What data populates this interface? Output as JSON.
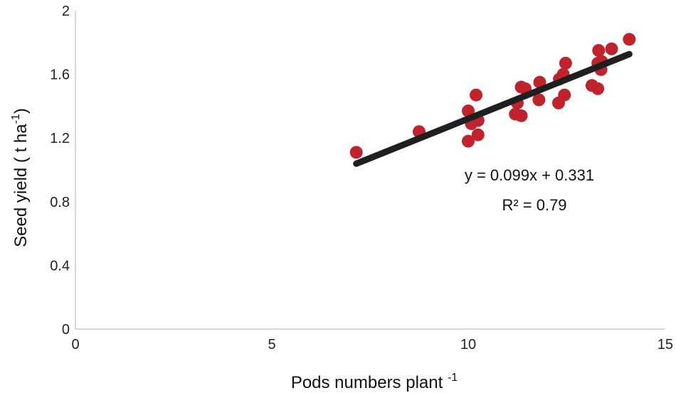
{
  "chart_data": {
    "type": "scatter",
    "title": "",
    "xlabel": {
      "main": "Pods numbers plant ",
      "sup": "-1"
    },
    "ylabel": {
      "main": "Seed yield ( t ha",
      "sup": "-1",
      "tail": ")"
    },
    "xlim": [
      0,
      15
    ],
    "ylim": [
      0,
      2
    ],
    "xticks": [
      0,
      5,
      10,
      15
    ],
    "yticks": [
      0,
      0.4,
      0.8,
      1.2,
      1.6,
      2
    ],
    "ytick_labels": [
      "0",
      "0.4",
      "0.8",
      "1.2",
      "1.6",
      "2"
    ],
    "grid": false,
    "legend": "none",
    "point_color": "#c0232b",
    "line_color": "#1f1f1f",
    "points": [
      {
        "x": 7.15,
        "y": 1.11
      },
      {
        "x": 8.75,
        "y": 1.24
      },
      {
        "x": 10.0,
        "y": 1.37
      },
      {
        "x": 10.0,
        "y": 1.18
      },
      {
        "x": 10.08,
        "y": 1.29
      },
      {
        "x": 10.2,
        "y": 1.47
      },
      {
        "x": 10.25,
        "y": 1.22
      },
      {
        "x": 10.25,
        "y": 1.31
      },
      {
        "x": 11.2,
        "y": 1.35
      },
      {
        "x": 11.25,
        "y": 1.42
      },
      {
        "x": 11.35,
        "y": 1.34
      },
      {
        "x": 11.35,
        "y": 1.52
      },
      {
        "x": 11.45,
        "y": 1.51
      },
      {
        "x": 11.8,
        "y": 1.44
      },
      {
        "x": 11.82,
        "y": 1.55
      },
      {
        "x": 12.3,
        "y": 1.42
      },
      {
        "x": 12.32,
        "y": 1.57
      },
      {
        "x": 12.42,
        "y": 1.6
      },
      {
        "x": 12.45,
        "y": 1.47
      },
      {
        "x": 12.48,
        "y": 1.67
      },
      {
        "x": 13.15,
        "y": 1.53
      },
      {
        "x": 13.3,
        "y": 1.51
      },
      {
        "x": 13.3,
        "y": 1.67
      },
      {
        "x": 13.32,
        "y": 1.75
      },
      {
        "x": 13.38,
        "y": 1.63
      },
      {
        "x": 13.4,
        "y": 1.68
      },
      {
        "x": 13.65,
        "y": 1.76
      },
      {
        "x": 14.1,
        "y": 1.82
      }
    ],
    "trendline": {
      "slope": 0.099,
      "intercept": 0.331,
      "x_range": [
        7.15,
        14.1
      ],
      "equation_label": "y = 0.099x + 0.331",
      "r2_label": "R² = 0.79"
    }
  }
}
